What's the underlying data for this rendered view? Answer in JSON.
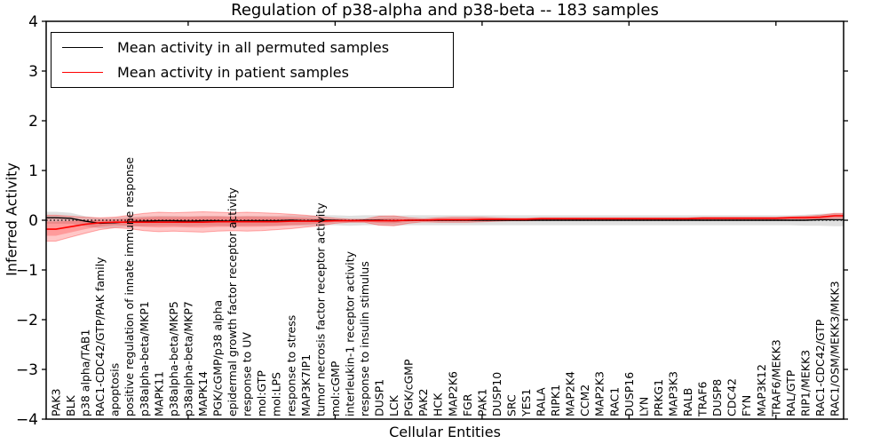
{
  "chart_data": {
    "type": "line",
    "title": "Regulation of p38-alpha and p38-beta -- 183 samples",
    "xlabel": "Cellular Entities",
    "ylabel": "Inferred Activity",
    "ylim": [
      -4,
      4
    ],
    "ytick_values": [
      4,
      3,
      2,
      1,
      0,
      -1,
      -2,
      -3,
      -4
    ],
    "ytick_labels": [
      "4",
      "3",
      "2",
      "1",
      "0",
      "−1",
      "−2",
      "−3",
      "−4"
    ],
    "xtick_every": 10,
    "grid": false,
    "legend_position": "upper left",
    "zero_line": {
      "value": 0,
      "style": "dotted",
      "color": "#000000"
    },
    "categories": [
      "PAK3",
      "BLK",
      "p38 alpha/TAB1",
      "RAC1-CDC42/GTP/PAK family",
      "apoptosis",
      "positive regulation of innate immune response",
      "p38alpha-beta/MKP1",
      "MAPK11",
      "p38alpha-beta/MKP5",
      "p38alpha-beta/MKP7",
      "MAPK14",
      "PGK/cGMP/p38 alpha",
      "epidermal growth factor receptor activity",
      "response to UV",
      "mol:GTP",
      "mol:LPS",
      "response to stress",
      "MAP3K7IP1",
      "tumor necrosis factor receptor activity",
      "mol:cGMP",
      "interleukin-1 receptor activity",
      "response to insulin stimulus",
      "DUSP1",
      "LCK",
      "PGK/cGMP",
      "PAK2",
      "HCK",
      "MAP2K6",
      "FGR",
      "PAK1",
      "DUSP10",
      "SRC",
      "YES1",
      "RALA",
      "RIPK1",
      "MAP2K4",
      "CCM2",
      "MAP2K3",
      "RAC1",
      "DUSP16",
      "LYN",
      "PRKG1",
      "MAP3K3",
      "RALB",
      "TRAF6",
      "DUSP8",
      "CDC42",
      "FYN",
      "MAP3K12",
      "TRAF6/MEKK3",
      "RAL/GTP",
      "RIP1/MEKK3",
      "RAC1-CDC42/GTP",
      "RAC1/OSM/MEKK3/MKK3"
    ],
    "series": [
      {
        "name": "Mean activity in all permuted samples",
        "color": "#000000",
        "band_color": "#000000",
        "band_opacity": 0.12,
        "values": [
          0.05,
          0.04,
          -0.02,
          -0.06,
          -0.05,
          -0.03,
          -0.02,
          -0.01,
          -0.01,
          -0.02,
          -0.01,
          -0.01,
          -0.02,
          -0.01,
          -0.01,
          -0.01,
          0,
          -0.01,
          0,
          0,
          -0.01,
          0,
          0,
          -0.01,
          0,
          0,
          0,
          0,
          0,
          0,
          0,
          0,
          0,
          0,
          0,
          0,
          0,
          0,
          0,
          0,
          0,
          0,
          0,
          0,
          0,
          0,
          0,
          0,
          0,
          0,
          0,
          0,
          0.01,
          0.01
        ],
        "band_half": [
          0.12,
          0.11,
          0.1,
          0.1,
          0.1,
          0.1,
          0.1,
          0.1,
          0.1,
          0.1,
          0.1,
          0.1,
          0.1,
          0.1,
          0.1,
          0.1,
          0.1,
          0.1,
          0.1,
          0.1,
          0.1,
          0.1,
          0.1,
          0.1,
          0.1,
          0.1,
          0.1,
          0.1,
          0.1,
          0.1,
          0.1,
          0.1,
          0.1,
          0.1,
          0.1,
          0.1,
          0.1,
          0.1,
          0.1,
          0.1,
          0.1,
          0.1,
          0.1,
          0.1,
          0.1,
          0.1,
          0.1,
          0.1,
          0.1,
          0.1,
          0.1,
          0.11,
          0.12,
          0.13
        ]
      },
      {
        "name": "Mean activity in patient samples",
        "color": "#ff0000",
        "band_color": "#ff0000",
        "band_opacity": 0.22,
        "values": [
          -0.18,
          -0.13,
          -0.08,
          -0.05,
          -0.04,
          -0.04,
          -0.04,
          -0.04,
          -0.04,
          -0.04,
          -0.04,
          -0.03,
          -0.03,
          -0.03,
          -0.03,
          -0.03,
          -0.02,
          -0.02,
          -0.02,
          -0.01,
          -0.01,
          -0.01,
          -0.01,
          -0.01,
          0,
          0,
          0.01,
          0.01,
          0.01,
          0.02,
          0.02,
          0.02,
          0.02,
          0.03,
          0.03,
          0.03,
          0.03,
          0.03,
          0.03,
          0.03,
          0.03,
          0.03,
          0.03,
          0.03,
          0.04,
          0.04,
          0.04,
          0.04,
          0.04,
          0.04,
          0.05,
          0.05,
          0.06,
          0.09
        ],
        "band_hi": [
          0.1,
          0.08,
          0.06,
          0.05,
          0.06,
          0.1,
          0.14,
          0.16,
          0.15,
          0.16,
          0.17,
          0.16,
          0.15,
          0.16,
          0.15,
          0.14,
          0.12,
          0.1,
          0.07,
          0.04,
          0.02,
          0.02,
          0.08,
          0.09,
          0.05,
          0.03,
          0.05,
          0.06,
          0.06,
          0.06,
          0.05,
          0.04,
          0.04,
          0.05,
          0.05,
          0.05,
          0.05,
          0.05,
          0.05,
          0.05,
          0.05,
          0.05,
          0.05,
          0.05,
          0.06,
          0.06,
          0.06,
          0.06,
          0.06,
          0.06,
          0.07,
          0.08,
          0.1,
          0.14
        ],
        "band_lo": [
          -0.42,
          -0.34,
          -0.26,
          -0.19,
          -0.15,
          -0.17,
          -0.21,
          -0.23,
          -0.22,
          -0.23,
          -0.24,
          -0.22,
          -0.21,
          -0.22,
          -0.21,
          -0.19,
          -0.17,
          -0.14,
          -0.11,
          -0.06,
          -0.04,
          -0.04,
          -0.1,
          -0.11,
          -0.06,
          -0.03,
          -0.04,
          -0.04,
          -0.04,
          -0.03,
          -0.02,
          -0.01,
          -0.01,
          0,
          0,
          0,
          0,
          0,
          0,
          0,
          0,
          0,
          0,
          0,
          0.01,
          0.01,
          0.01,
          0.01,
          0.01,
          0.01,
          0.02,
          0.02,
          0.02,
          0.04
        ]
      }
    ]
  }
}
